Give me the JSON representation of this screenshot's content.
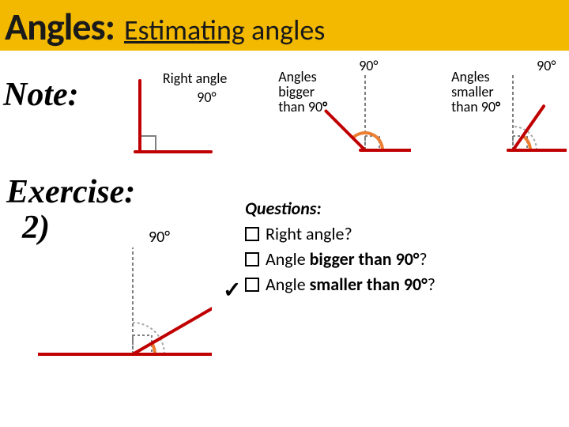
{
  "title": {
    "main": "Angles:",
    "sub_under": "Estimating",
    "sub_rest": " angles"
  },
  "colors": {
    "title_bg": "#f2b900",
    "angle_red": "#c00000",
    "arc_orange": "#ed7d31",
    "ref_gray": "#7f7f7f",
    "square_gray": "#7f7f7f",
    "arc_gray": "#a6a6a6",
    "text": "#000000"
  },
  "note": {
    "label": "Note:",
    "right": {
      "line1": "Right angle",
      "ninety": "90°",
      "angle_deg": 90
    },
    "big": {
      "line1": "Angles",
      "line2": "bigger",
      "line3": "than 90",
      "deg_symbol": "°",
      "ninety": "90°",
      "angle_deg": 135
    },
    "small": {
      "line1": "Angles",
      "line2": "smaller",
      "line3": "than 90",
      "deg_symbol": "°",
      "ninety": "90°",
      "angle_deg": 55
    }
  },
  "exercise": {
    "label": "Exercise:",
    "number": "2)",
    "ninety": "90°",
    "angle_deg": 30,
    "questions_title": "Questions:",
    "q1": "Right angle?",
    "q2_pre": "Angle ",
    "q2_b": "bigger than 90",
    "q2_deg": "°",
    "q2_post": "?",
    "q3_pre": "Angle ",
    "q3_b": "smaller than 90",
    "q3_deg": "°",
    "q3_post": "?",
    "checked_index": 2
  },
  "stroke": {
    "red_width": 4,
    "ref_width": 2,
    "arc_width": 4
  }
}
